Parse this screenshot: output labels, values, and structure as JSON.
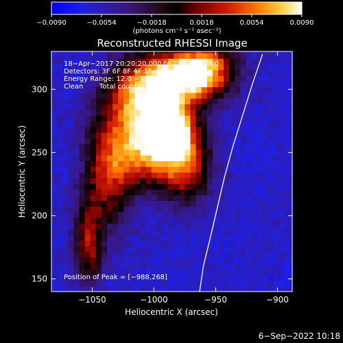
{
  "chart_data": {
    "type": "heatmap",
    "title": "Reconstructed RHESSI Image",
    "xlabel": "Heliocentric X (arcsec)",
    "ylabel": "Heliocentric Y (arcsec)",
    "xlim": [
      -1083,
      -888
    ],
    "ylim": [
      140,
      330
    ],
    "x_ticks": [
      -1050,
      -1000,
      -950,
      -900
    ],
    "x_tick_labels": [
      "−1050",
      "−1000",
      "−950",
      "−900"
    ],
    "y_ticks": [
      150,
      200,
      250,
      300
    ],
    "y_tick_labels": [
      "150",
      "200",
      "250",
      "300"
    ],
    "colorbar": {
      "range": [
        -0.009,
        0.009
      ],
      "ticks": [
        -0.009,
        -0.0054,
        -0.0018,
        0.0018,
        0.0054,
        0.009
      ],
      "tick_labels": [
        "−0.0090",
        "−0.0054",
        "−0.0018",
        "0.0018",
        "0.0054",
        "0.0090"
      ],
      "units_label": "(photons cm⁻² s⁻¹ asec⁻²)"
    },
    "annotations": [
      "18−Apr−2017 20:20:20.000 to 20:26:20.000",
      "Detectors: 3F 6F 8F 4F 1F 0",
      "Energy Range: 12.0 − 25.0 keV",
      "Clean",
      "Total counts: 1536484"
    ],
    "peak_label": "Position of Peak = [−988,268]",
    "peak": [
      -988,
      268
    ],
    "limb_curve": [
      [
        -912,
        328
      ],
      [
        -920,
        305
      ],
      [
        -928,
        280
      ],
      [
        -936,
        255
      ],
      [
        -943,
        230
      ],
      [
        -949,
        205
      ],
      [
        -955,
        180
      ],
      [
        -960,
        160
      ],
      [
        -963,
        140
      ]
    ],
    "intensity_sources": [
      {
        "x": -990,
        "y": 268,
        "sx": 12,
        "sy": 12,
        "amp": 0.009
      },
      {
        "x": -985,
        "y": 305,
        "sx": 22,
        "sy": 16,
        "amp": 0.0065
      },
      {
        "x": -1015,
        "y": 285,
        "sx": 20,
        "sy": 24,
        "amp": 0.0052
      },
      {
        "x": -960,
        "y": 315,
        "sx": 18,
        "sy": 14,
        "amp": 0.0045
      },
      {
        "x": -1005,
        "y": 245,
        "sx": 20,
        "sy": 18,
        "amp": 0.0038
      },
      {
        "x": -975,
        "y": 240,
        "sx": 14,
        "sy": 22,
        "amp": 0.003
      },
      {
        "x": -1040,
        "y": 230,
        "sx": 14,
        "sy": 30,
        "amp": 0.0025
      },
      {
        "x": -1055,
        "y": 175,
        "sx": 8,
        "sy": 22,
        "amp": 0.0022
      }
    ],
    "background_level": -0.006,
    "colors": {
      "min": "#0000ff",
      "mid": "#000000",
      "max": "#ffffff",
      "limb": "#ffffff"
    }
  },
  "footer_timestamp": "6−Sep−2022 10:18"
}
